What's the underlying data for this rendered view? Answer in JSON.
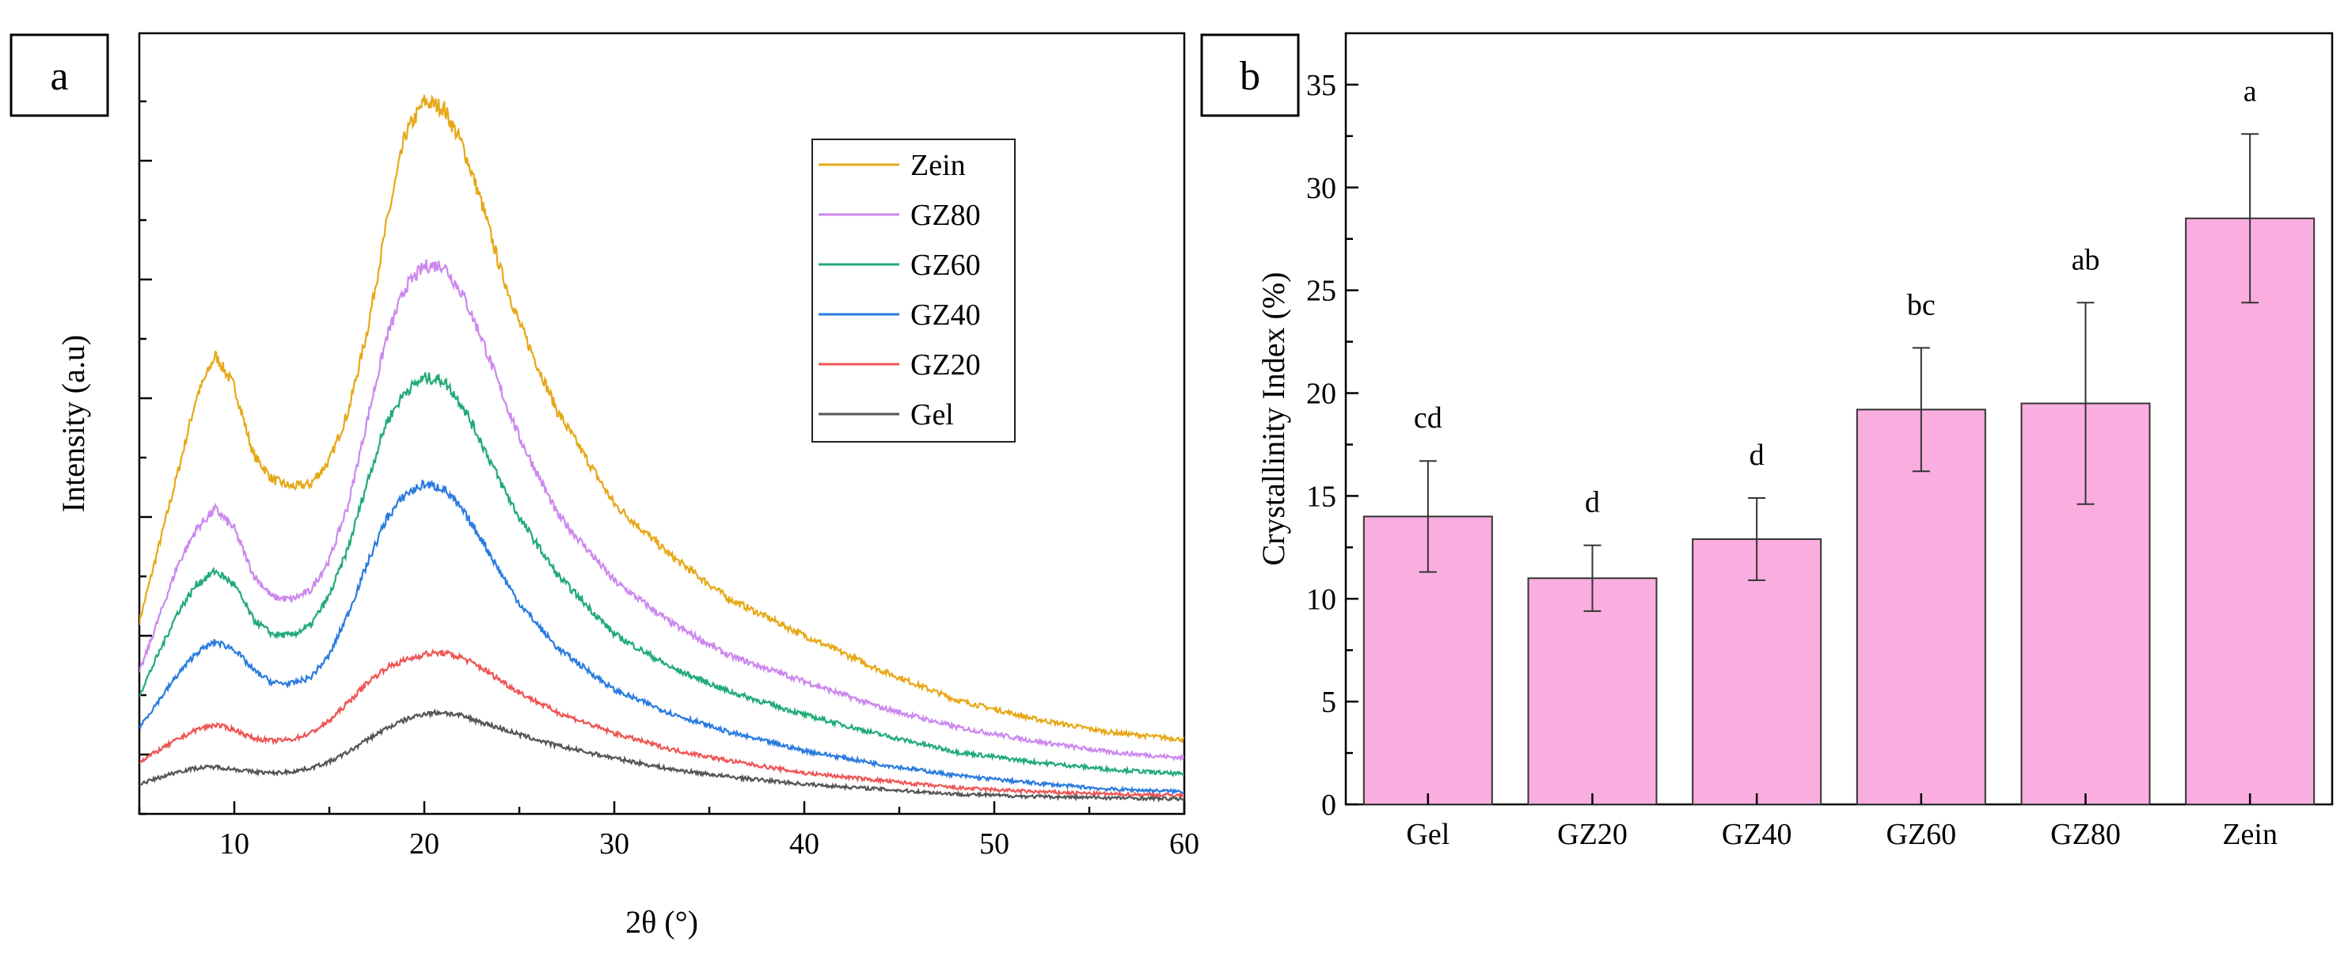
{
  "chart_data": [
    {
      "type": "line",
      "panel_label": "a",
      "xlabel": "2θ (°)",
      "ylabel": "Intensity (a.u)",
      "xlim": [
        5,
        60
      ],
      "xticks": [
        10,
        20,
        30,
        40,
        50,
        60
      ],
      "y_tick_labels_shown": false,
      "y_units": "relative vertical offset scale (stacked patterns)",
      "legend_position": "top-right",
      "series": [
        {
          "name": "Zein",
          "color": "#E6A817",
          "x": [
            5,
            7,
            8,
            9,
            10,
            11,
            12,
            13,
            14,
            15,
            16,
            17,
            18,
            19,
            20,
            21,
            22,
            23,
            24,
            25,
            27,
            30,
            33,
            36,
            40,
            44,
            48,
            52,
            56,
            60
          ],
          "y": [
            40.5,
            52.4,
            58.6,
            62.0,
            59.5,
            54.0,
            52.0,
            51.4,
            51.6,
            53.5,
            57.5,
            64.0,
            72.5,
            79.8,
            82.5,
            82.0,
            79.0,
            74.4,
            69.0,
            64.6,
            57.5,
            50.0,
            45.8,
            42.4,
            39.4,
            36.6,
            34.2,
            32.7,
            31.6,
            31.0
          ]
        },
        {
          "name": "GZ80",
          "color": "#CC88EE",
          "x": [
            5,
            7,
            8,
            9,
            10,
            11,
            12,
            13,
            14,
            15,
            16,
            17,
            18,
            19,
            20,
            21,
            22,
            23,
            24,
            25,
            27,
            30,
            33,
            36,
            40,
            44,
            48,
            52,
            56,
            60
          ],
          "y": [
            36.4,
            45.0,
            48.0,
            49.6,
            48.0,
            44.3,
            42.5,
            42.3,
            43.0,
            45.5,
            50.0,
            56.8,
            63.4,
            67.5,
            69.2,
            69.3,
            67.0,
            63.5,
            59.3,
            55.4,
            49.2,
            43.8,
            40.4,
            37.8,
            35.7,
            33.6,
            32.0,
            30.9,
            30.0,
            29.5
          ]
        },
        {
          "name": "GZ60",
          "color": "#22AA77",
          "x": [
            5,
            7,
            8,
            9,
            10,
            11,
            12,
            13,
            14,
            15,
            16,
            17,
            18,
            19,
            20,
            21,
            22,
            23,
            24,
            25,
            27,
            30,
            33,
            36,
            40,
            44,
            48,
            52,
            56,
            60
          ],
          "y": [
            34.6,
            41.2,
            43.5,
            44.6,
            43.5,
            40.7,
            39.5,
            39.4,
            40.2,
            42.6,
            46.5,
            51.8,
            56.6,
            59.1,
            60.2,
            60.0,
            58.0,
            55.0,
            51.8,
            48.9,
            44.3,
            39.5,
            36.8,
            34.9,
            33.0,
            31.4,
            30.0,
            29.2,
            28.6,
            28.2
          ]
        },
        {
          "name": "GZ40",
          "color": "#2A7BDE",
          "x": [
            5,
            7,
            8,
            9,
            10,
            11,
            12,
            13,
            14,
            15,
            16,
            17,
            18,
            19,
            20,
            21,
            22,
            23,
            24,
            25,
            27,
            30,
            33,
            36,
            40,
            44,
            48,
            52,
            56,
            60
          ],
          "y": [
            32.0,
            36.2,
            38.0,
            38.9,
            38.3,
            36.6,
            35.6,
            35.5,
            36.0,
            37.8,
            41.2,
            45.2,
            48.8,
            50.8,
            51.6,
            51.3,
            49.5,
            47.2,
            44.5,
            42.0,
            38.4,
            35.0,
            33.1,
            31.6,
            30.1,
            29.0,
            28.1,
            27.5,
            27.0,
            26.8
          ]
        },
        {
          "name": "GZ20",
          "color": "#EE5555",
          "x": [
            5,
            7,
            8,
            9,
            10,
            11,
            12,
            13,
            14,
            15,
            16,
            17,
            18,
            19,
            20,
            21,
            22,
            23,
            24,
            25,
            27,
            30,
            33,
            36,
            40,
            44,
            48,
            52,
            56,
            60
          ],
          "y": [
            29.2,
            31.0,
            31.8,
            32.2,
            31.8,
            31.1,
            30.9,
            31.0,
            31.5,
            32.5,
            34.0,
            35.6,
            36.8,
            37.4,
            37.9,
            38.0,
            37.6,
            36.8,
            35.8,
            34.8,
            33.2,
            31.5,
            30.2,
            29.3,
            28.3,
            27.7,
            27.1,
            26.8,
            26.6,
            26.5
          ]
        },
        {
          "name": "Gel",
          "color": "#555555",
          "x": [
            5,
            7,
            8,
            9,
            10,
            11,
            12,
            13,
            14,
            15,
            16,
            17,
            18,
            19,
            20,
            21,
            22,
            23,
            24,
            25,
            27,
            30,
            33,
            36,
            40,
            44,
            48,
            52,
            56,
            60
          ],
          "y": [
            27.4,
            28.4,
            28.7,
            28.8,
            28.6,
            28.4,
            28.3,
            28.4,
            28.7,
            29.2,
            30.0,
            31.0,
            31.9,
            32.6,
            33.1,
            33.2,
            32.9,
            32.4,
            31.9,
            31.4,
            30.5,
            29.5,
            28.6,
            28.0,
            27.4,
            27.0,
            26.6,
            26.4,
            26.3,
            26.2
          ]
        }
      ],
      "ylim": [
        25,
        88
      ]
    },
    {
      "type": "bar",
      "panel_label": "b",
      "xlabel": "",
      "ylabel": "Crystallinity Index (%)",
      "ylim": [
        0,
        37.5
      ],
      "yticks": [
        0,
        5,
        10,
        15,
        20,
        25,
        30,
        35
      ],
      "categories": [
        "Gel",
        "GZ20",
        "GZ40",
        "GZ60",
        "GZ80",
        "Zein"
      ],
      "values": [
        14.0,
        11.0,
        12.9,
        19.2,
        19.5,
        28.5
      ],
      "errors": [
        2.7,
        1.6,
        2.0,
        3.0,
        4.9,
        4.1
      ],
      "significance_letters": [
        "cd",
        "d",
        "d",
        "bc",
        "ab",
        "a"
      ],
      "bar_color": "#F9AEDF",
      "bar_edge_color": "#333333"
    }
  ]
}
